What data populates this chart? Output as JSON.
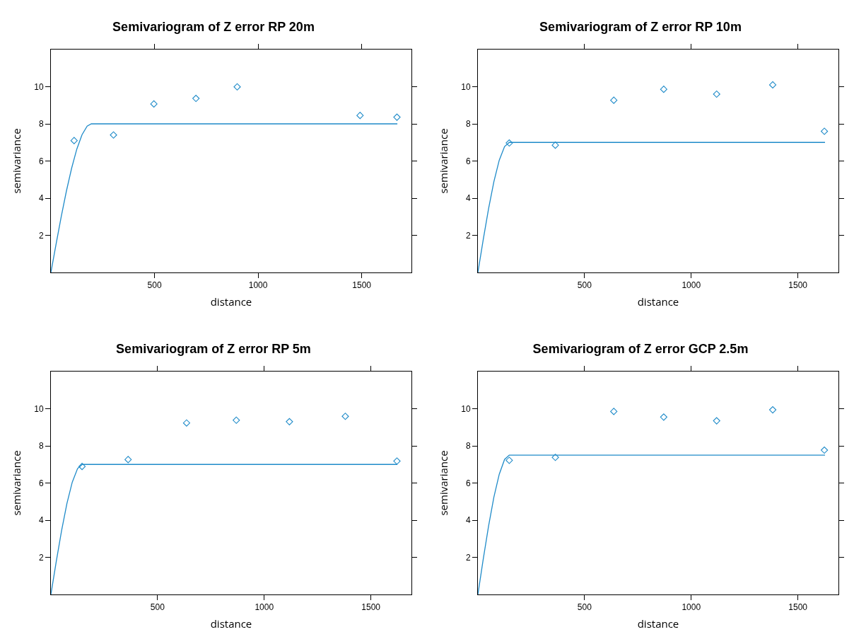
{
  "chart_data": [
    {
      "type": "scatter",
      "title": "Semivariogram of Z error RP 20m",
      "xlabel": "distance",
      "ylabel": "semivariance",
      "xlim": [
        0,
        1740
      ],
      "xticks": [
        500,
        1000,
        1500
      ],
      "ylim": [
        0,
        12
      ],
      "yticks": [
        2,
        4,
        6,
        8,
        10
      ],
      "series": [
        {
          "type": "scatter",
          "marker": "diamond",
          "color": "#1f8bc9",
          "x": [
            112,
            302,
            497,
            700,
            899,
            1492,
            1670
          ],
          "values": [
            7.1,
            7.4,
            9.07,
            9.37,
            9.99,
            8.45,
            8.36
          ]
        },
        {
          "type": "line",
          "marker": "none",
          "color": "#1f8bc9",
          "x": [
            0,
            25,
            50,
            75,
            100,
            125,
            150,
            175,
            195,
            1672
          ],
          "values": [
            0,
            1.53,
            3.01,
            4.39,
            5.61,
            6.64,
            7.41,
            7.88,
            8,
            8
          ]
        }
      ]
    },
    {
      "type": "scatter",
      "title": "Semivariogram of Z error RP 10m",
      "xlabel": "distance",
      "ylabel": "semivariance",
      "xlim": [
        0,
        1690
      ],
      "xticks": [
        500,
        1000,
        1500
      ],
      "ylim": [
        0,
        12
      ],
      "yticks": [
        2,
        4,
        6,
        8,
        10
      ],
      "series": [
        {
          "type": "scatter",
          "marker": "diamond",
          "color": "#1f8bc9",
          "x": [
            147,
            363,
            637,
            871,
            1119,
            1382,
            1624
          ],
          "values": [
            6.97,
            6.85,
            9.27,
            9.86,
            9.6,
            10.1,
            7.6
          ]
        },
        {
          "type": "line",
          "marker": "none",
          "color": "#1f8bc9",
          "x": [
            0,
            25,
            50,
            75,
            100,
            125,
            147,
            1627
          ],
          "values": [
            0,
            1.77,
            3.43,
            4.89,
            6.04,
            6.78,
            7,
            7
          ]
        }
      ]
    },
    {
      "type": "scatter",
      "title": "Semivariogram of Z error RP 5m",
      "xlabel": "distance",
      "ylabel": "semivariance",
      "xlim": [
        0,
        1690
      ],
      "xticks": [
        500,
        1000,
        1500
      ],
      "ylim": [
        0,
        12
      ],
      "yticks": [
        2,
        4,
        6,
        8,
        10
      ],
      "series": [
        {
          "type": "scatter",
          "marker": "diamond",
          "color": "#1f8bc9",
          "x": [
            146,
            362,
            636,
            869,
            1118,
            1380,
            1622
          ],
          "values": [
            6.89,
            7.26,
            9.23,
            9.38,
            9.3,
            9.59,
            7.18
          ]
        },
        {
          "type": "line",
          "marker": "none",
          "color": "#1f8bc9",
          "x": [
            0,
            25,
            50,
            75,
            100,
            125,
            147,
            1624
          ],
          "values": [
            0,
            1.77,
            3.43,
            4.89,
            6.04,
            6.78,
            7,
            7
          ]
        }
      ]
    },
    {
      "type": "scatter",
      "title": "Semivariogram of Z error GCP 2.5m",
      "xlabel": "distance",
      "ylabel": "semivariance",
      "xlim": [
        0,
        1690
      ],
      "xticks": [
        500,
        1000,
        1500
      ],
      "ylim": [
        0,
        12
      ],
      "yticks": [
        2,
        4,
        6,
        8,
        10
      ],
      "series": [
        {
          "type": "scatter",
          "marker": "diamond",
          "color": "#1f8bc9",
          "x": [
            147,
            363,
            637,
            871,
            1119,
            1382,
            1624
          ],
          "values": [
            7.22,
            7.38,
            9.85,
            9.55,
            9.35,
            9.94,
            7.77
          ]
        },
        {
          "type": "line",
          "marker": "none",
          "color": "#1f8bc9",
          "x": [
            0,
            25,
            50,
            75,
            100,
            125,
            147,
            1627
          ],
          "values": [
            0,
            1.9,
            3.68,
            5.24,
            6.47,
            7.27,
            7.5,
            7.5
          ]
        }
      ]
    }
  ]
}
